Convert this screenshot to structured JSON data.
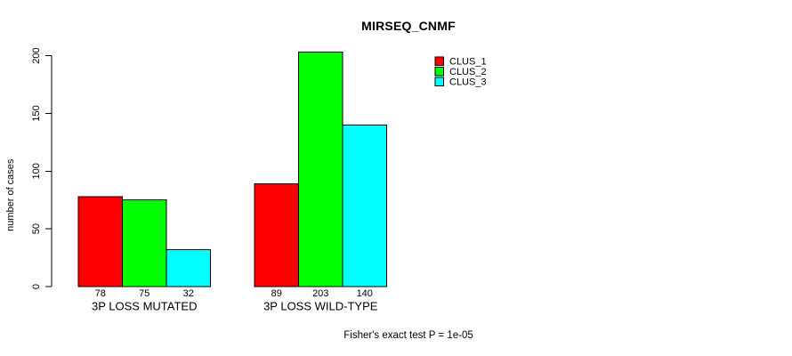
{
  "window": {
    "background": "#ffffff"
  },
  "chart_data": {
    "type": "bar",
    "title": "MIRSEQ_CNMF",
    "ylabel": "number of cases",
    "xlabel": "",
    "ylim": [
      0,
      200
    ],
    "yticks": [
      0,
      50,
      100,
      150,
      200
    ],
    "grid": false,
    "categories": [
      "3P LOSS MUTATED",
      "3P LOSS WILD-TYPE"
    ],
    "series": [
      {
        "name": "CLUS_1",
        "color": "#ff0000",
        "values": [
          78,
          89
        ]
      },
      {
        "name": "CLUS_2",
        "color": "#00ff00",
        "values": [
          75,
          203
        ]
      },
      {
        "name": "CLUS_3",
        "color": "#00ffff",
        "values": [
          32,
          140
        ]
      }
    ],
    "bar_value_labels": [
      [
        78,
        75,
        32
      ],
      [
        89,
        203,
        140
      ]
    ],
    "legend_position": "top-right",
    "annotation": "Fisher's exact test P = 1e-05",
    "axis_color": "#000000",
    "bar_border_color": "#000000"
  }
}
